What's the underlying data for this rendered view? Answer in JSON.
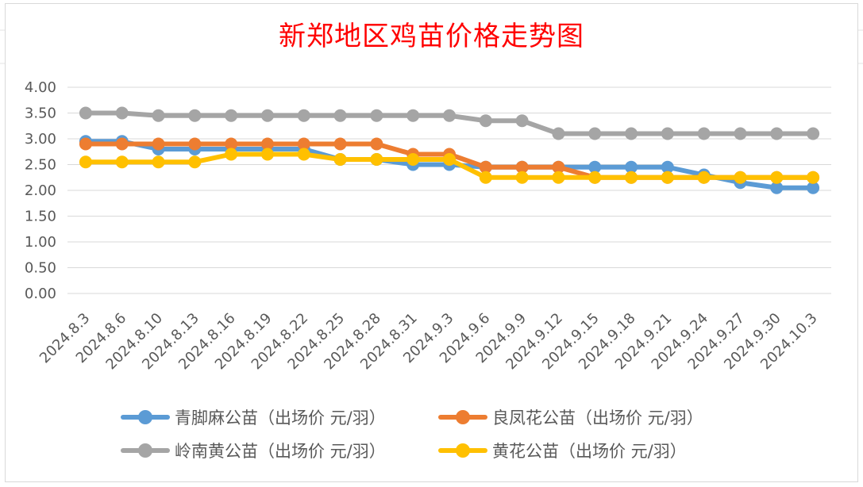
{
  "chart_data": {
    "type": "line",
    "title": "新郑地区鸡苗价格走势图",
    "categories": [
      "2024.8.3",
      "2024.8.6",
      "2024.8.10",
      "2024.8.13",
      "2024.8.16",
      "2024.8.19",
      "2024.8.22",
      "2024.8.25",
      "2024.8.28",
      "2024.8.31",
      "2024.9.3",
      "2024.9.6",
      "2024.9.9",
      "2024.9.12",
      "2024.9.15",
      "2024.9.18",
      "2024.9.21",
      "2024.9.24",
      "2024.9.27",
      "2024.9.30",
      "2024.10.3"
    ],
    "ylim": [
      0,
      4
    ],
    "yticks": [
      "0.00",
      "0.50",
      "1.00",
      "1.50",
      "2.00",
      "2.50",
      "3.00",
      "3.50",
      "4.00"
    ],
    "grid": true,
    "legend_position": "bottom",
    "series": [
      {
        "name": "青脚麻公苗（出场价 元/羽）",
        "color": "#5b9bd5",
        "values": [
          2.95,
          2.95,
          2.8,
          2.8,
          2.8,
          2.8,
          2.8,
          2.6,
          2.6,
          2.5,
          2.5,
          2.45,
          2.45,
          2.45,
          2.45,
          2.45,
          2.45,
          2.3,
          2.15,
          2.05,
          2.05
        ]
      },
      {
        "name": "良凤花公苗（出场价 元/羽）",
        "color": "#ed7d31",
        "values": [
          2.9,
          2.9,
          2.9,
          2.9,
          2.9,
          2.9,
          2.9,
          2.9,
          2.9,
          2.7,
          2.7,
          2.45,
          2.45,
          2.45,
          2.25,
          2.25,
          2.25,
          2.25,
          2.25,
          2.25,
          2.25
        ]
      },
      {
        "name": "岭南黄公苗（出场价 元/羽）",
        "color": "#a5a5a5",
        "values": [
          3.5,
          3.5,
          3.45,
          3.45,
          3.45,
          3.45,
          3.45,
          3.45,
          3.45,
          3.45,
          3.45,
          3.35,
          3.35,
          3.1,
          3.1,
          3.1,
          3.1,
          3.1,
          3.1,
          3.1,
          3.1
        ]
      },
      {
        "name": "黄花公苗（出场价 元/羽）",
        "color": "#ffc000",
        "values": [
          2.55,
          2.55,
          2.55,
          2.55,
          2.7,
          2.7,
          2.7,
          2.6,
          2.6,
          2.6,
          2.6,
          2.25,
          2.25,
          2.25,
          2.25,
          2.25,
          2.25,
          2.25,
          2.25,
          2.25,
          2.25
        ]
      }
    ]
  }
}
